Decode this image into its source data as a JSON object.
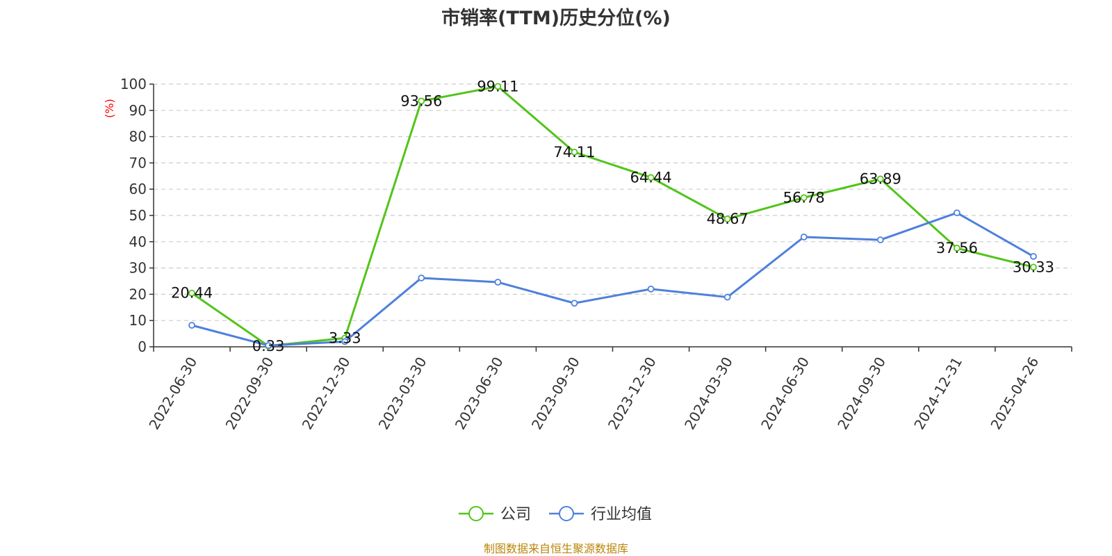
{
  "title": "市销率(TTM)历史分位(%)",
  "source_note": "制图数据来自恒生聚源数据库",
  "colors": {
    "company": "#52c41a",
    "industry": "#4e80dc",
    "grid": "#cccccc",
    "axis": "#333333",
    "ylabel": "#ff0000"
  },
  "chart_data": {
    "type": "line",
    "title": "市销率(TTM)历史分位(%)",
    "ylabel": "(%)",
    "xlabel": "",
    "ylim": [
      0,
      100
    ],
    "yticks": [
      0,
      10,
      20,
      30,
      40,
      50,
      60,
      70,
      80,
      90,
      100
    ],
    "grid": true,
    "legend_position": "bottom-center",
    "x_tick_labels": [
      "2022-06-30",
      "2022-09-30",
      "2022-12-30",
      "2023-03-30",
      "2023-06-30",
      "2023-09-30",
      "2023-12-30",
      "2024-03-30",
      "2024-06-30",
      "2024-09-30",
      "2024-12-31",
      "2025-04-26"
    ],
    "x": [
      "2022-06-30",
      "2022-09-30",
      "2022-12-30",
      "2023-03-30",
      "2023-06-30",
      "2023-09-30",
      "2023-12-30",
      "2024-03-30",
      "2024-06-30",
      "2024-09-30",
      "2024-12-31",
      "2025-04-26"
    ],
    "series": [
      {
        "name": "公司",
        "color": "#52c41a",
        "values": [
          20.44,
          0.33,
          3.33,
          93.56,
          99.11,
          74.11,
          64.44,
          48.67,
          56.78,
          63.89,
          37.56,
          30.33
        ],
        "labels": [
          "20.44",
          "0.33",
          "3.33",
          "93.56",
          "99.11",
          "74.11",
          "64.44",
          "48.67",
          "56.78",
          "63.89",
          "37.56",
          "30.33"
        ]
      },
      {
        "name": "行业均值",
        "color": "#4e80dc",
        "values": [
          8.2,
          0.5,
          2.0,
          26.2,
          24.6,
          16.6,
          22.0,
          18.9,
          41.8,
          40.7,
          51.0,
          34.4
        ]
      }
    ]
  }
}
